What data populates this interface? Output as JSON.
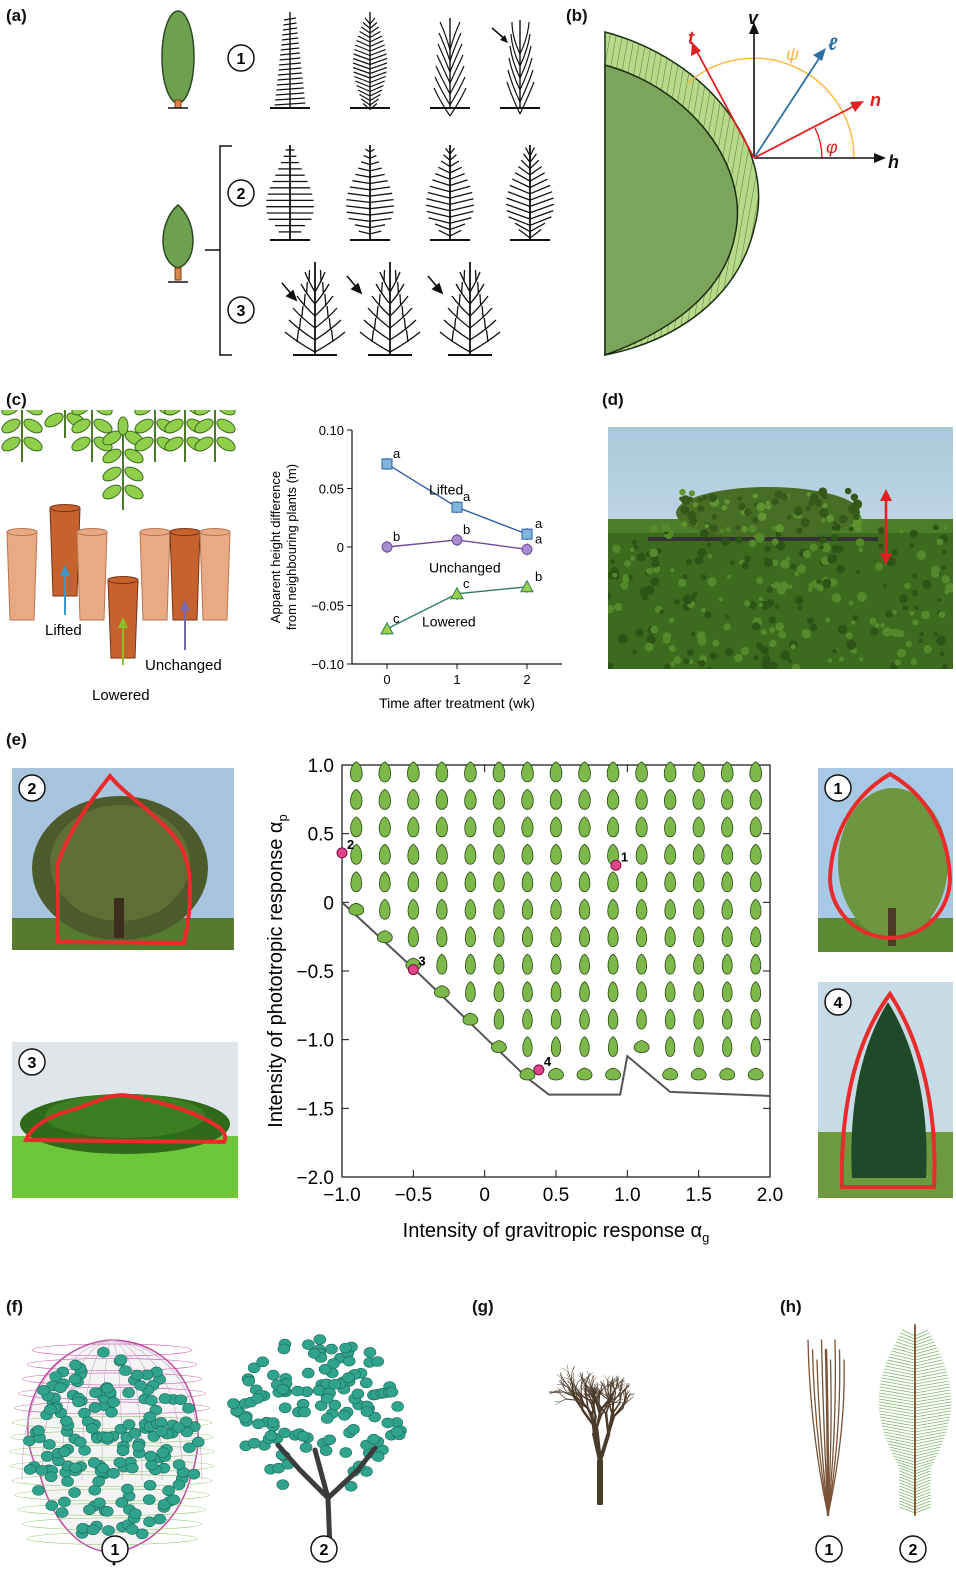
{
  "panels": {
    "a": "(a)",
    "b": "(b)",
    "c": "(c)",
    "d": "(d)",
    "e": "(e)",
    "f": "(f)",
    "g": "(g)",
    "h": "(h)"
  },
  "circled_numbers": [
    "1",
    "2",
    "3",
    "4"
  ],
  "panel_b": {
    "vectors": [
      "t",
      "v",
      "ℓ",
      "n",
      "h"
    ],
    "angles": [
      "ψ",
      "φ"
    ]
  },
  "panel_c": {
    "pot_labels": [
      "Lifted",
      "Lowered",
      "Unchanged"
    ],
    "chart_data": {
      "type": "line",
      "xlabel": "Time after treatment (wk)",
      "ylabel": "Apparent height difference from neighbouring plants (m)",
      "ylabel_lines": [
        "Apparent height difference",
        "from neighbouring plants (m)"
      ],
      "x": [
        0,
        1,
        2
      ],
      "xlim": [
        -0.5,
        2.5
      ],
      "ylim": [
        -0.1,
        0.1
      ],
      "xticks": [
        "0",
        "1",
        "2"
      ],
      "yticks": [
        "0.10",
        "0.05",
        "0",
        "−0.05",
        "−0.10"
      ],
      "ytick_values": [
        0.1,
        0.05,
        0,
        -0.05,
        -0.1
      ],
      "series": [
        {
          "name": "Lifted",
          "values": [
            0.071,
            0.034,
            0.011
          ],
          "letters": [
            "a",
            "a",
            "a"
          ],
          "color": "#2f5fa8",
          "fill": "#7fb6dd",
          "marker": "square"
        },
        {
          "name": "Unchanged",
          "values": [
            0.0,
            0.006,
            -0.002
          ],
          "letters": [
            "b",
            "b",
            "a"
          ],
          "color": "#6a4b9c",
          "fill": "#a98cce",
          "marker": "circle"
        },
        {
          "name": "Lowered",
          "values": [
            -0.07,
            -0.04,
            -0.034
          ],
          "letters": [
            "c",
            "c",
            "b"
          ],
          "color": "#2f7d57",
          "fill": "#9ccf4a",
          "marker": "triangle"
        }
      ]
    }
  },
  "panel_e": {
    "chart_data": {
      "type": "scatter",
      "xlabel": "Intensity of gravitropic response α",
      "xlabel_sub": "g",
      "ylabel": "Intensity of phototropic response α",
      "ylabel_sub": "p",
      "xlim": [
        -1.0,
        2.0
      ],
      "ylim": [
        -2.0,
        1.0
      ],
      "xticks": [
        "−1.0",
        "−0.5",
        "0",
        "0.5",
        "1.0",
        "1.5",
        "2.0"
      ],
      "xtick_values": [
        -1.0,
        -0.5,
        0,
        0.5,
        1.0,
        1.5,
        2.0
      ],
      "yticks": [
        "1.0",
        "0.5",
        "0",
        "−0.5",
        "−1.0",
        "−1.5",
        "−2.0"
      ],
      "ytick_values": [
        1.0,
        0.5,
        0,
        -0.5,
        -1.0,
        -1.5,
        -2.0
      ],
      "points": [
        {
          "label": "1",
          "x": 0.92,
          "y": 0.27
        },
        {
          "label": "2",
          "x": -1.0,
          "y": 0.36
        },
        {
          "label": "3",
          "x": -0.5,
          "y": -0.49
        },
        {
          "label": "4",
          "x": 0.38,
          "y": -1.22
        }
      ],
      "boundary": [
        [
          -1.0,
          0.0
        ],
        [
          -0.5,
          -0.48
        ],
        [
          0.0,
          -0.98
        ],
        [
          0.3,
          -1.28
        ],
        [
          0.45,
          -1.4
        ],
        [
          0.95,
          -1.4
        ],
        [
          1.0,
          -1.12
        ],
        [
          1.3,
          -1.38
        ],
        [
          2.0,
          -1.41
        ]
      ],
      "accent": "#7cb84a",
      "marker_color": "#e0448a"
    }
  }
}
